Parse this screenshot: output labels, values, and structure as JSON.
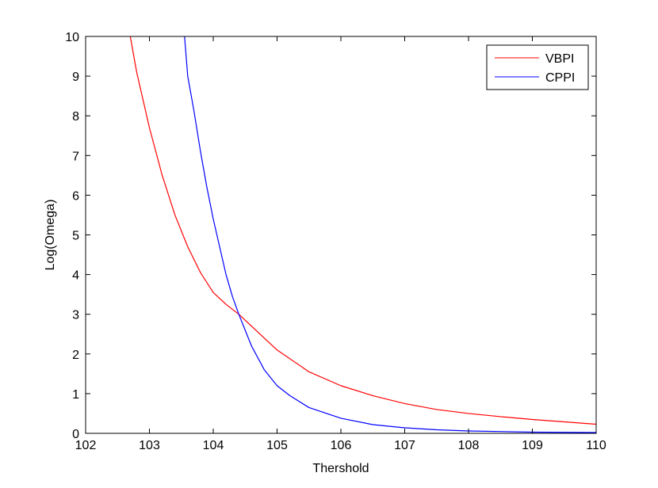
{
  "chart_data": {
    "type": "line",
    "title": "",
    "xlabel": "Thershold",
    "ylabel": "Log(Omega)",
    "xlim": [
      102,
      110
    ],
    "ylim": [
      0,
      10
    ],
    "xticks": [
      "102",
      "103",
      "104",
      "105",
      "106",
      "107",
      "108",
      "109",
      "110"
    ],
    "yticks": [
      "0",
      "1",
      "2",
      "3",
      "4",
      "5",
      "6",
      "7",
      "8",
      "9",
      "10"
    ],
    "grid": false,
    "legend_position": "top-right",
    "series": [
      {
        "name": "VBPI",
        "color": "#ff0000",
        "x": [
          102.7,
          102.8,
          103.0,
          103.2,
          103.4,
          103.6,
          103.8,
          104.0,
          104.2,
          104.4,
          104.6,
          104.8,
          105.0,
          105.5,
          106.0,
          106.5,
          107.0,
          107.5,
          108.0,
          108.5,
          109.0,
          109.5,
          110.0
        ],
        "y": [
          10.0,
          9.1,
          7.7,
          6.5,
          5.5,
          4.7,
          4.05,
          3.55,
          3.25,
          3.0,
          2.7,
          2.4,
          2.1,
          1.55,
          1.2,
          0.95,
          0.75,
          0.6,
          0.5,
          0.42,
          0.35,
          0.29,
          0.23
        ]
      },
      {
        "name": "CPPI",
        "color": "#0000ff",
        "x": [
          103.55,
          103.6,
          103.7,
          103.8,
          103.9,
          104.0,
          104.1,
          104.2,
          104.3,
          104.4,
          104.5,
          104.6,
          104.7,
          104.8,
          105.0,
          105.2,
          105.5,
          106.0,
          106.5,
          107.0,
          107.5,
          108.0,
          109.0,
          110.0
        ],
        "y": [
          10.0,
          9.0,
          8.1,
          7.1,
          6.2,
          5.4,
          4.7,
          4.0,
          3.45,
          3.0,
          2.6,
          2.2,
          1.9,
          1.6,
          1.2,
          0.95,
          0.65,
          0.38,
          0.22,
          0.14,
          0.09,
          0.06,
          0.03,
          0.02
        ]
      }
    ]
  }
}
